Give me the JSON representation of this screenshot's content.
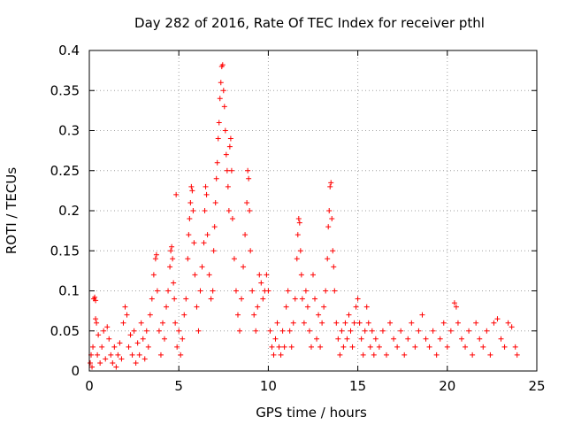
{
  "chart_data": {
    "type": "scatter",
    "title": "Day 282 of 2016, Rate Of TEC Index for receiver pthl",
    "xlabel": "GPS time / hours",
    "ylabel": "ROTI / TECUs",
    "xlim": [
      0,
      25
    ],
    "ylim": [
      0,
      0.4
    ],
    "xticks": [
      0,
      5,
      10,
      15,
      20,
      25
    ],
    "xtick_labels": [
      "0",
      "5",
      "10",
      "15",
      "20",
      "25"
    ],
    "yticks": [
      0,
      0.05,
      0.1,
      0.15,
      0.2,
      0.25,
      0.3,
      0.35,
      0.4
    ],
    "ytick_labels": [
      "0",
      "0.05",
      "0.1",
      "0.15",
      "0.2",
      "0.25",
      "0.3",
      "0.35",
      "0.4"
    ],
    "grid": true,
    "marker": "plus",
    "color": "#ff0000",
    "series": [
      {
        "name": "ROTI",
        "points": [
          [
            0.05,
            0.01
          ],
          [
            0.1,
            0.02
          ],
          [
            0.15,
            0.005
          ],
          [
            0.2,
            0.03
          ],
          [
            0.25,
            0.09
          ],
          [
            0.3,
            0.092
          ],
          [
            0.35,
            0.088
          ],
          [
            0.35,
            0.065
          ],
          [
            0.4,
            0.06
          ],
          [
            0.45,
            0.02
          ],
          [
            0.5,
            0.045
          ],
          [
            0.6,
            0.01
          ],
          [
            0.7,
            0.03
          ],
          [
            0.8,
            0.05
          ],
          [
            0.9,
            0.015
          ],
          [
            1.0,
            0.055
          ],
          [
            1.1,
            0.04
          ],
          [
            1.2,
            0.02
          ],
          [
            1.3,
            0.01
          ],
          [
            1.4,
            0.03
          ],
          [
            1.5,
            0.005
          ],
          [
            1.6,
            0.02
          ],
          [
            1.7,
            0.035
          ],
          [
            1.8,
            0.015
          ],
          [
            1.9,
            0.06
          ],
          [
            2.0,
            0.08
          ],
          [
            2.1,
            0.07
          ],
          [
            2.2,
            0.03
          ],
          [
            2.3,
            0.045
          ],
          [
            2.4,
            0.02
          ],
          [
            2.5,
            0.05
          ],
          [
            2.6,
            0.01
          ],
          [
            2.7,
            0.035
          ],
          [
            2.8,
            0.02
          ],
          [
            2.9,
            0.06
          ],
          [
            3.0,
            0.04
          ],
          [
            3.1,
            0.015
          ],
          [
            3.2,
            0.05
          ],
          [
            3.3,
            0.03
          ],
          [
            3.4,
            0.07
          ],
          [
            3.5,
            0.09
          ],
          [
            3.6,
            0.12
          ],
          [
            3.7,
            0.14
          ],
          [
            3.75,
            0.145
          ],
          [
            3.8,
            0.1
          ],
          [
            3.9,
            0.05
          ],
          [
            4.0,
            0.02
          ],
          [
            4.1,
            0.06
          ],
          [
            4.2,
            0.04
          ],
          [
            4.3,
            0.08
          ],
          [
            4.4,
            0.1
          ],
          [
            4.5,
            0.13
          ],
          [
            4.55,
            0.15
          ],
          [
            4.6,
            0.155
          ],
          [
            4.65,
            0.14
          ],
          [
            4.7,
            0.11
          ],
          [
            4.75,
            0.09
          ],
          [
            4.8,
            0.06
          ],
          [
            4.85,
            0.22
          ],
          [
            4.9,
            0.03
          ],
          [
            5.0,
            0.05
          ],
          [
            5.1,
            0.02
          ],
          [
            5.2,
            0.04
          ],
          [
            5.3,
            0.07
          ],
          [
            5.4,
            0.09
          ],
          [
            5.5,
            0.14
          ],
          [
            5.55,
            0.17
          ],
          [
            5.6,
            0.19
          ],
          [
            5.65,
            0.21
          ],
          [
            5.7,
            0.23
          ],
          [
            5.75,
            0.225
          ],
          [
            5.8,
            0.2
          ],
          [
            5.85,
            0.16
          ],
          [
            5.9,
            0.12
          ],
          [
            6.0,
            0.08
          ],
          [
            6.1,
            0.05
          ],
          [
            6.2,
            0.1
          ],
          [
            6.3,
            0.13
          ],
          [
            6.4,
            0.16
          ],
          [
            6.45,
            0.2
          ],
          [
            6.5,
            0.23
          ],
          [
            6.55,
            0.22
          ],
          [
            6.6,
            0.17
          ],
          [
            6.7,
            0.12
          ],
          [
            6.8,
            0.09
          ],
          [
            6.9,
            0.1
          ],
          [
            6.95,
            0.15
          ],
          [
            7.0,
            0.18
          ],
          [
            7.05,
            0.21
          ],
          [
            7.1,
            0.24
          ],
          [
            7.15,
            0.26
          ],
          [
            7.2,
            0.29
          ],
          [
            7.25,
            0.31
          ],
          [
            7.3,
            0.34
          ],
          [
            7.35,
            0.36
          ],
          [
            7.4,
            0.38
          ],
          [
            7.45,
            0.382
          ],
          [
            7.5,
            0.35
          ],
          [
            7.55,
            0.33
          ],
          [
            7.6,
            0.3
          ],
          [
            7.65,
            0.27
          ],
          [
            7.7,
            0.25
          ],
          [
            7.75,
            0.23
          ],
          [
            7.8,
            0.2
          ],
          [
            7.85,
            0.28
          ],
          [
            7.9,
            0.29
          ],
          [
            7.95,
            0.25
          ],
          [
            8.0,
            0.19
          ],
          [
            8.1,
            0.14
          ],
          [
            8.2,
            0.1
          ],
          [
            8.3,
            0.07
          ],
          [
            8.4,
            0.05
          ],
          [
            8.5,
            0.09
          ],
          [
            8.6,
            0.13
          ],
          [
            8.7,
            0.17
          ],
          [
            8.8,
            0.21
          ],
          [
            8.85,
            0.25
          ],
          [
            8.9,
            0.24
          ],
          [
            8.95,
            0.2
          ],
          [
            9.0,
            0.15
          ],
          [
            9.1,
            0.1
          ],
          [
            9.2,
            0.07
          ],
          [
            9.3,
            0.05
          ],
          [
            9.4,
            0.08
          ],
          [
            9.5,
            0.12
          ],
          [
            9.6,
            0.11
          ],
          [
            9.7,
            0.09
          ],
          [
            9.8,
            0.1
          ],
          [
            9.9,
            0.12
          ],
          [
            10.0,
            0.1
          ],
          [
            10.1,
            0.05
          ],
          [
            10.2,
            0.03
          ],
          [
            10.3,
            0.02
          ],
          [
            10.4,
            0.04
          ],
          [
            10.5,
            0.06
          ],
          [
            10.6,
            0.03
          ],
          [
            10.7,
            0.02
          ],
          [
            10.8,
            0.05
          ],
          [
            10.9,
            0.03
          ],
          [
            11.0,
            0.08
          ],
          [
            11.1,
            0.1
          ],
          [
            11.2,
            0.05
          ],
          [
            11.3,
            0.03
          ],
          [
            11.4,
            0.06
          ],
          [
            11.5,
            0.09
          ],
          [
            11.6,
            0.14
          ],
          [
            11.65,
            0.17
          ],
          [
            11.7,
            0.19
          ],
          [
            11.75,
            0.185
          ],
          [
            11.8,
            0.15
          ],
          [
            11.85,
            0.12
          ],
          [
            11.9,
            0.09
          ],
          [
            12.0,
            0.06
          ],
          [
            12.1,
            0.1
          ],
          [
            12.2,
            0.08
          ],
          [
            12.3,
            0.05
          ],
          [
            12.4,
            0.03
          ],
          [
            12.5,
            0.12
          ],
          [
            12.6,
            0.09
          ],
          [
            12.7,
            0.04
          ],
          [
            12.8,
            0.07
          ],
          [
            12.9,
            0.03
          ],
          [
            13.0,
            0.06
          ],
          [
            13.1,
            0.08
          ],
          [
            13.2,
            0.1
          ],
          [
            13.3,
            0.14
          ],
          [
            13.35,
            0.18
          ],
          [
            13.4,
            0.2
          ],
          [
            13.45,
            0.23
          ],
          [
            13.5,
            0.235
          ],
          [
            13.55,
            0.19
          ],
          [
            13.6,
            0.15
          ],
          [
            13.65,
            0.13
          ],
          [
            13.7,
            0.1
          ],
          [
            13.8,
            0.06
          ],
          [
            13.9,
            0.04
          ],
          [
            14.0,
            0.02
          ],
          [
            14.1,
            0.05
          ],
          [
            14.2,
            0.03
          ],
          [
            14.3,
            0.06
          ],
          [
            14.4,
            0.04
          ],
          [
            14.5,
            0.07
          ],
          [
            14.6,
            0.05
          ],
          [
            14.7,
            0.03
          ],
          [
            14.8,
            0.06
          ],
          [
            14.9,
            0.08
          ],
          [
            15.0,
            0.09
          ],
          [
            15.1,
            0.06
          ],
          [
            15.2,
            0.04
          ],
          [
            15.3,
            0.02
          ],
          [
            15.4,
            0.05
          ],
          [
            15.5,
            0.08
          ],
          [
            15.6,
            0.06
          ],
          [
            15.7,
            0.03
          ],
          [
            15.8,
            0.05
          ],
          [
            15.9,
            0.02
          ],
          [
            16.0,
            0.04
          ],
          [
            16.2,
            0.03
          ],
          [
            16.4,
            0.05
          ],
          [
            16.6,
            0.02
          ],
          [
            16.8,
            0.06
          ],
          [
            17.0,
            0.04
          ],
          [
            17.2,
            0.03
          ],
          [
            17.4,
            0.05
          ],
          [
            17.6,
            0.02
          ],
          [
            17.8,
            0.04
          ],
          [
            18.0,
            0.06
          ],
          [
            18.2,
            0.03
          ],
          [
            18.4,
            0.05
          ],
          [
            18.6,
            0.07
          ],
          [
            18.8,
            0.04
          ],
          [
            19.0,
            0.03
          ],
          [
            19.2,
            0.05
          ],
          [
            19.4,
            0.02
          ],
          [
            19.6,
            0.04
          ],
          [
            19.8,
            0.06
          ],
          [
            20.0,
            0.03
          ],
          [
            20.2,
            0.05
          ],
          [
            20.4,
            0.085
          ],
          [
            20.5,
            0.08
          ],
          [
            20.6,
            0.06
          ],
          [
            20.8,
            0.04
          ],
          [
            21.0,
            0.03
          ],
          [
            21.2,
            0.05
          ],
          [
            21.4,
            0.02
          ],
          [
            21.6,
            0.06
          ],
          [
            21.8,
            0.04
          ],
          [
            22.0,
            0.03
          ],
          [
            22.2,
            0.05
          ],
          [
            22.4,
            0.02
          ],
          [
            22.6,
            0.06
          ],
          [
            22.8,
            0.065
          ],
          [
            23.0,
            0.04
          ],
          [
            23.2,
            0.03
          ],
          [
            23.4,
            0.06
          ],
          [
            23.6,
            0.055
          ],
          [
            23.8,
            0.03
          ],
          [
            23.9,
            0.02
          ]
        ]
      }
    ]
  }
}
